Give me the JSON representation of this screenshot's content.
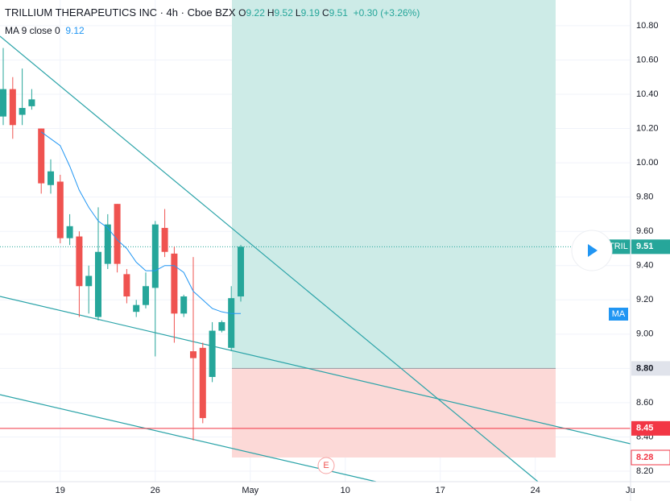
{
  "header": {
    "title": "TRILLIUM THERAPEUTICS INC · 4h · Cboe BZX",
    "ohlc": [
      {
        "label": "O",
        "value": "9.22"
      },
      {
        "label": "H",
        "value": "9.52"
      },
      {
        "label": "L",
        "value": "9.19"
      },
      {
        "label": "C",
        "value": "9.51"
      }
    ],
    "change": "+0.30 (+3.26%)",
    "ma_title": "MA 9 close 0",
    "ma_value": "9.12"
  },
  "chart_data": {
    "type": "candlestick",
    "open": [
      10.27,
      10.43,
      10.28,
      10.33,
      10.2,
      9.87,
      9.89,
      9.56,
      9.57,
      9.28,
      9.1,
      9.41,
      9.76,
      9.35,
      9.13,
      9.17,
      9.27,
      9.62,
      9.47,
      9.12,
      8.9,
      8.92,
      8.75,
      9.02,
      8.92,
      9.22
    ],
    "high": [
      10.67,
      10.5,
      10.55,
      10.43,
      10.2,
      10.02,
      9.93,
      9.7,
      9.6,
      9.4,
      9.74,
      9.7,
      9.76,
      9.38,
      9.2,
      9.36,
      9.66,
      9.73,
      9.51,
      9.23,
      9.45,
      8.95,
      9.07,
      9.08,
      9.28,
      9.52
    ],
    "low": [
      10.22,
      10.14,
      10.22,
      10.31,
      9.82,
      9.82,
      9.53,
      9.52,
      9.1,
      9.12,
      9.08,
      9.38,
      9.36,
      9.18,
      9.1,
      9.15,
      8.87,
      9.45,
      8.95,
      9.1,
      8.38,
      8.48,
      8.72,
      9.01,
      8.9,
      9.19
    ],
    "close": [
      10.43,
      10.22,
      10.32,
      10.37,
      9.88,
      9.95,
      9.56,
      9.63,
      9.28,
      9.34,
      9.48,
      9.64,
      9.41,
      9.22,
      9.17,
      9.28,
      9.64,
      9.48,
      9.12,
      9.22,
      8.86,
      8.51,
      9.02,
      9.07,
      9.21,
      9.51
    ],
    "up_color": "#26a69a",
    "down_color": "#ef5350",
    "ma": {
      "color": "#2196f3",
      "values": [
        null,
        null,
        null,
        null,
        10.18,
        10.14,
        10.1,
        9.98,
        9.84,
        9.74,
        9.66,
        9.62,
        9.55,
        9.5,
        9.42,
        9.37,
        9.37,
        9.4,
        9.4,
        9.36,
        9.25,
        9.2,
        9.15,
        9.13,
        9.12,
        9.12
      ],
      "tag": "MA"
    },
    "xlim": [
      -0.34,
      66.02
    ],
    "ylim": [
      8.139,
      10.95
    ],
    "xticks": [
      {
        "value": 6,
        "label": "19"
      },
      {
        "value": 16,
        "label": "26"
      },
      {
        "value": 26,
        "label": "May"
      },
      {
        "value": 36,
        "label": "10"
      },
      {
        "value": 46,
        "label": "17"
      },
      {
        "value": 56,
        "label": "24"
      },
      {
        "value": 66,
        "label": "Ju"
      }
    ],
    "yticks": [
      {
        "value": 10.8,
        "label": "10.80"
      },
      {
        "value": 10.6,
        "label": "10.60"
      },
      {
        "value": 10.4,
        "label": "10.40"
      },
      {
        "value": 10.2,
        "label": "10.20"
      },
      {
        "value": 10,
        "label": "10.00"
      },
      {
        "value": 9.8,
        "label": "9.80"
      },
      {
        "value": 9.6,
        "label": "9.60"
      },
      {
        "value": 9.4,
        "label": "9.40"
      },
      {
        "value": 9.2,
        "label": "9.20"
      },
      {
        "value": 9,
        "label": "9.00"
      },
      {
        "value": 8.8,
        "label": "8.80"
      },
      {
        "value": 8.6,
        "label": "8.60"
      },
      {
        "value": 8.4,
        "label": "8.40"
      },
      {
        "value": 8.2,
        "label": "8.20"
      }
    ],
    "grid": true,
    "last_price": {
      "symbol": "TRIL",
      "value": 9.51
    },
    "position": {
      "entry": {
        "value": 8.8,
        "label": "8.80"
      },
      "stop": {
        "value": 8.28,
        "label": "8.28"
      },
      "profit_color": "#cdebe7",
      "loss_color": "#fcd9d7"
    },
    "hline": {
      "value": 8.45,
      "label": "8.45",
      "color": "#f23645"
    },
    "event": "E"
  }
}
